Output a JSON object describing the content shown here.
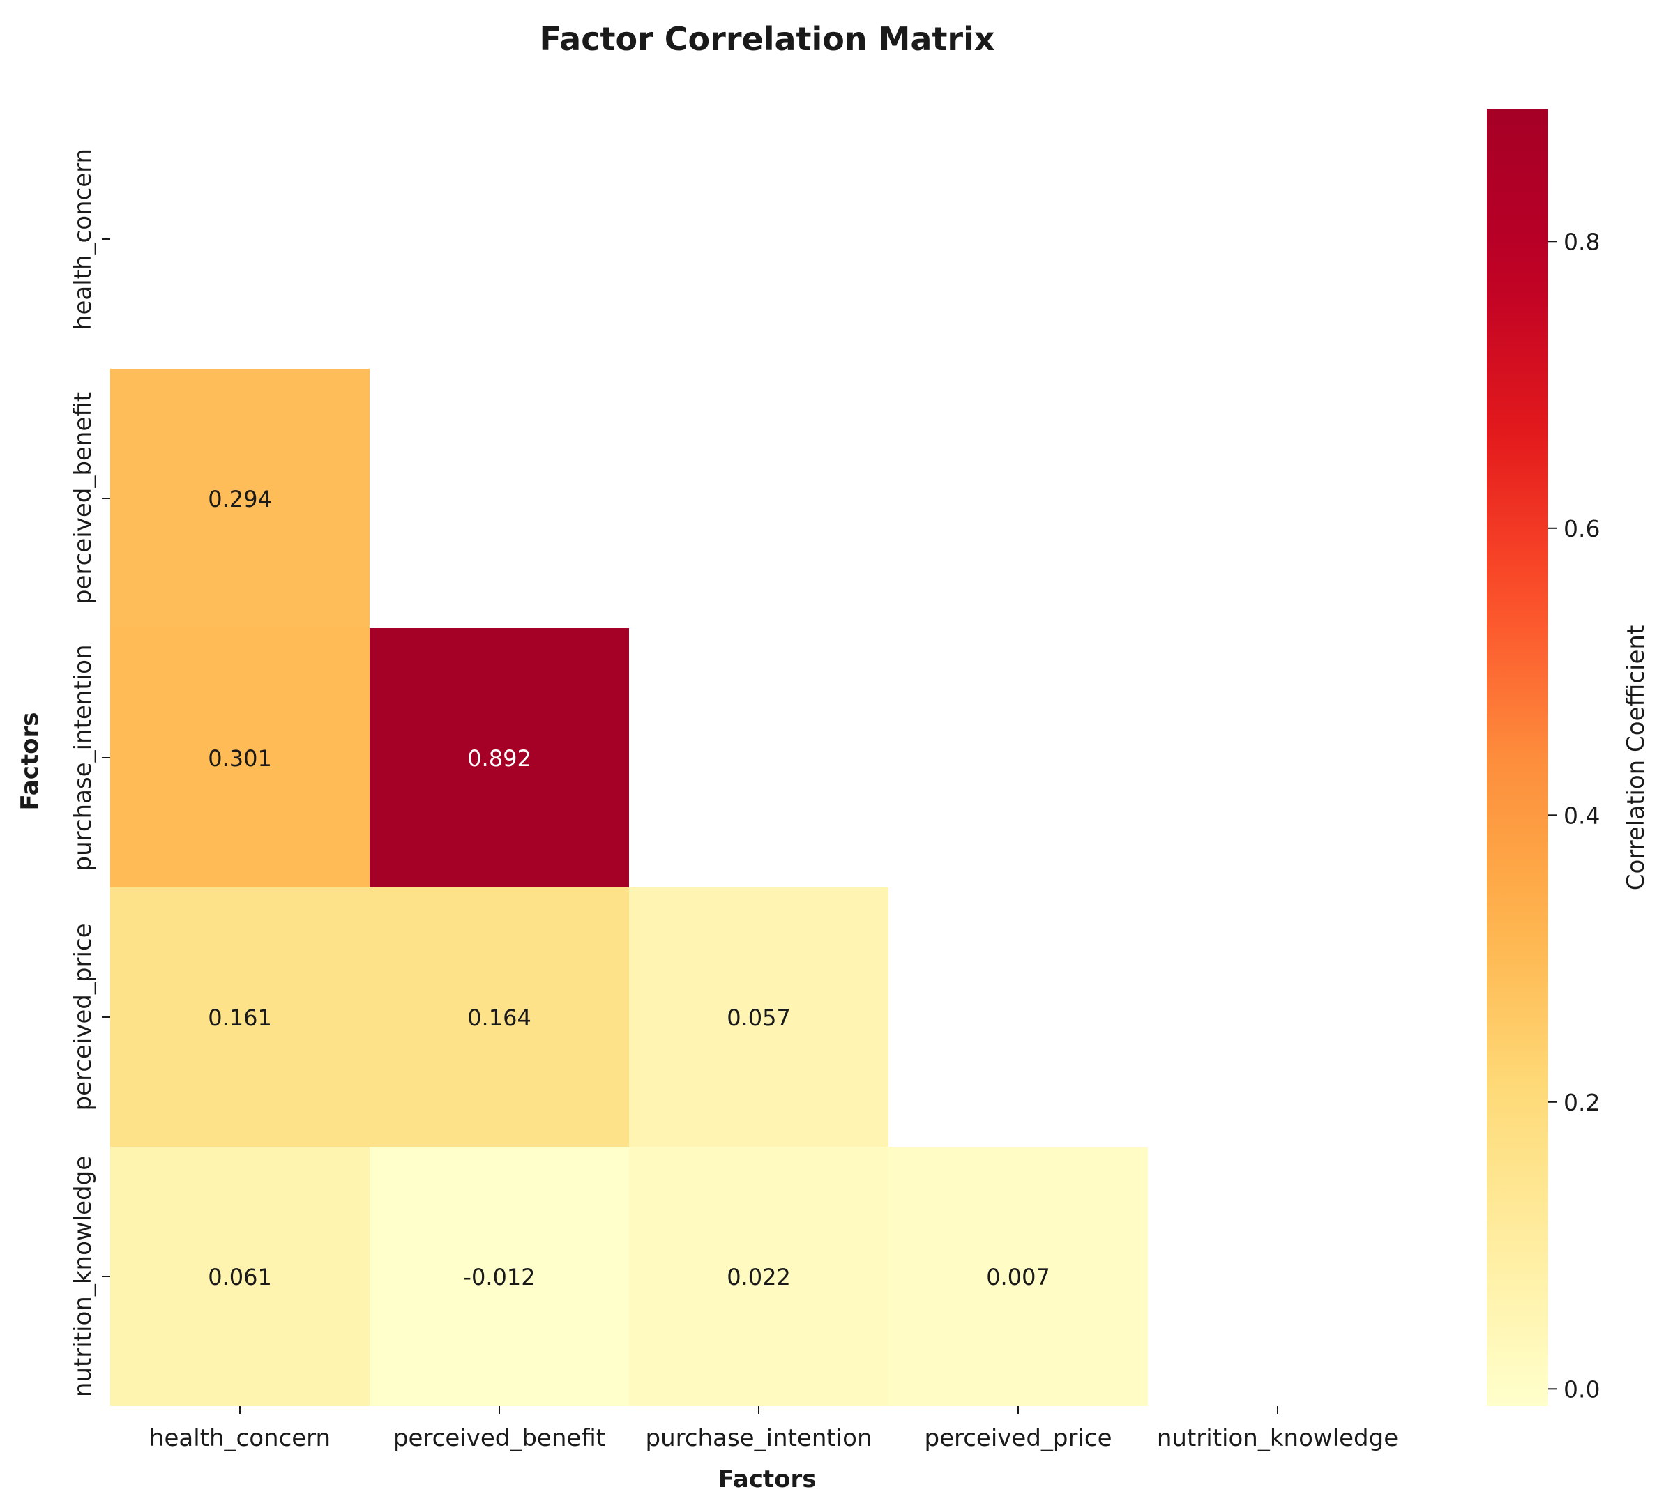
{
  "chart_data": {
    "type": "heatmap",
    "title": "Factor Correlation Matrix",
    "xlabel": "Factors",
    "ylabel": "Factors",
    "factors": [
      "health_concern",
      "perceived_benefit",
      "purchase_intention",
      "perceived_price",
      "nutrition_knowledge"
    ],
    "matrix_shown": "lower-triangle (diagonal and upper triangle masked)",
    "values": [
      [
        null,
        null,
        null,
        null,
        null
      ],
      [
        0.294,
        null,
        null,
        null,
        null
      ],
      [
        0.301,
        0.892,
        null,
        null,
        null
      ],
      [
        0.161,
        0.164,
        0.057,
        null,
        null
      ],
      [
        0.061,
        -0.012,
        0.022,
        0.007,
        null
      ]
    ],
    "colormap": "YlOrRd",
    "colorbar": {
      "label": "Correlation Coefficient",
      "range": [
        -0.012,
        0.892
      ],
      "ticks": [
        "0.0",
        "0.2",
        "0.4",
        "0.6",
        "0.8"
      ]
    },
    "colors": {
      "low": "#ffffcc",
      "mid": "#fd8d3c",
      "high": "#a50026"
    }
  }
}
